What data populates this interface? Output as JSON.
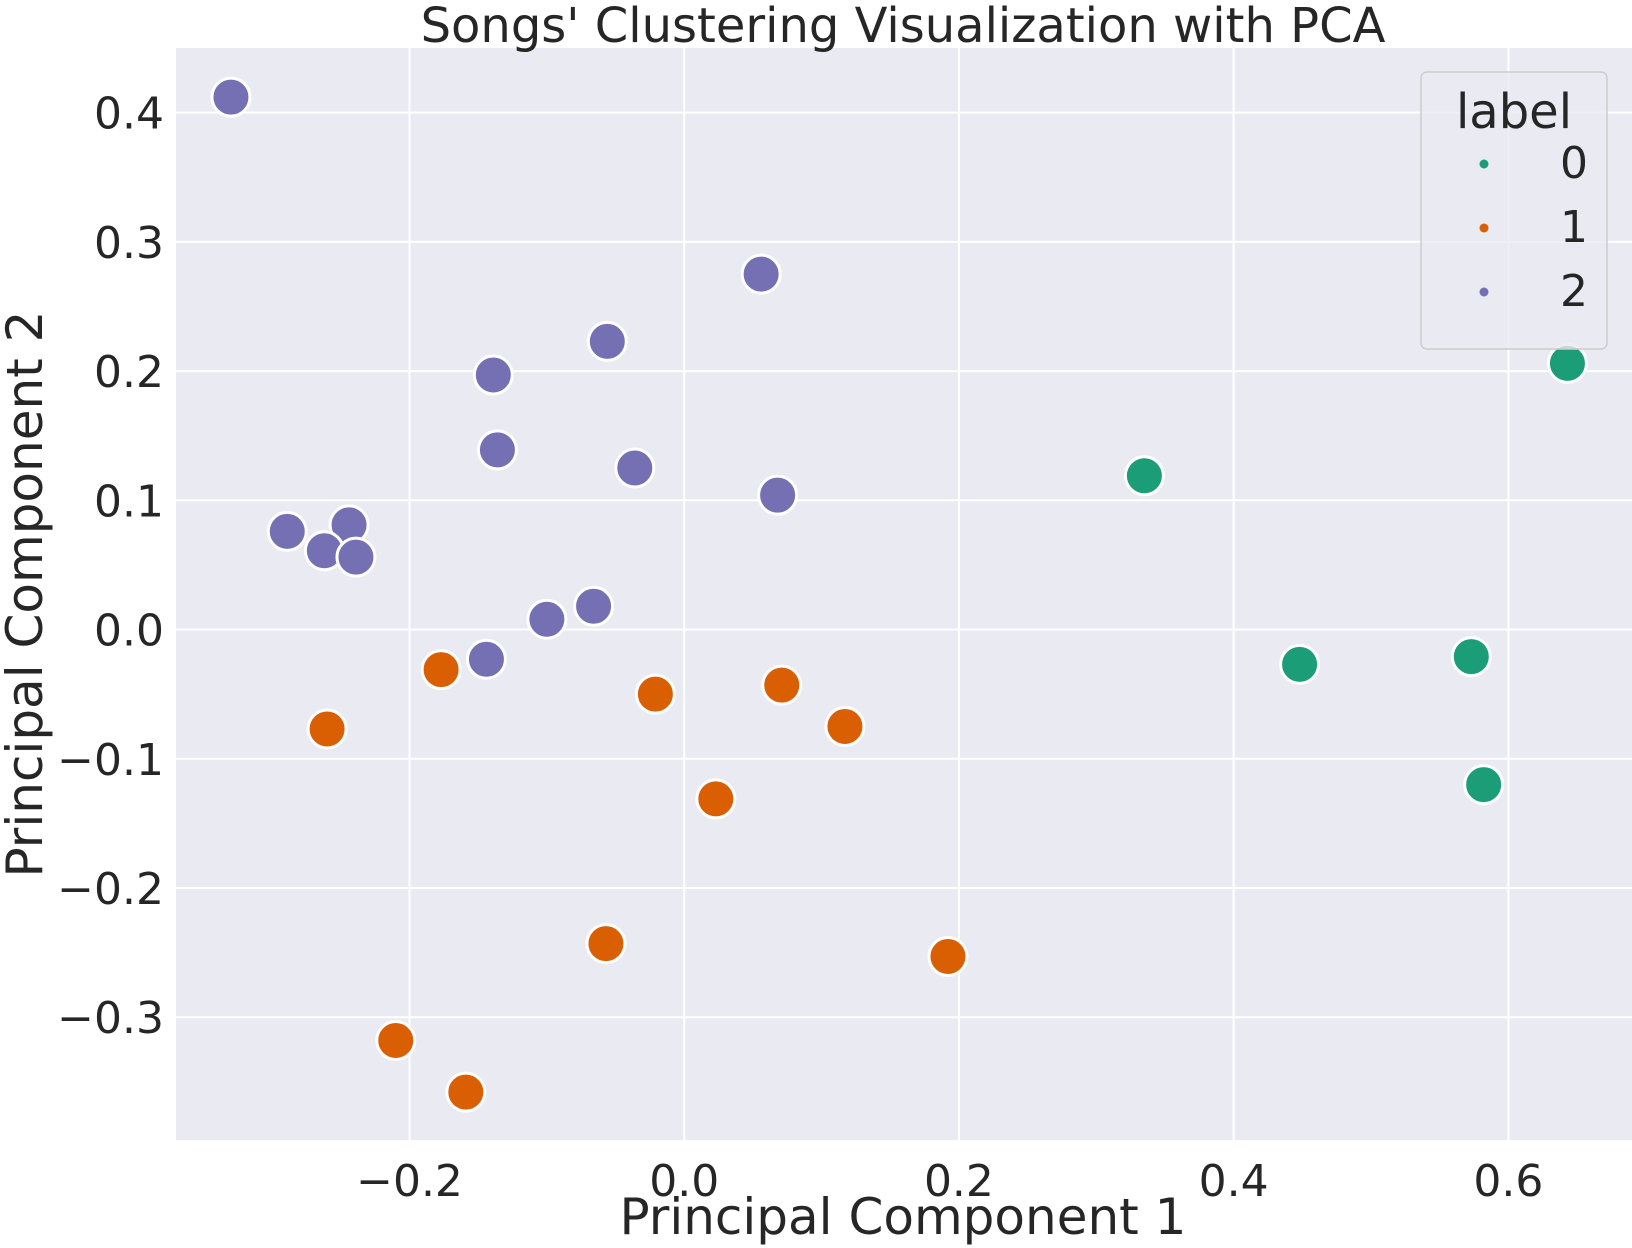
{
  "chart_data": {
    "type": "scatter",
    "title": "Songs' Clustering Visualization with PCA",
    "xlabel": "Principal Component 1",
    "ylabel": "Principal Component 2",
    "xlim": [
      -0.37,
      0.69
    ],
    "ylim": [
      -0.395,
      0.45
    ],
    "x_ticks": [
      -0.2,
      0.0,
      0.2,
      0.4,
      0.6
    ],
    "x_tick_labels": [
      "−0.2",
      "0.0",
      "0.2",
      "0.4",
      "0.6"
    ],
    "y_ticks": [
      -0.3,
      -0.2,
      -0.1,
      0.0,
      0.1,
      0.2,
      0.3,
      0.4
    ],
    "y_tick_labels": [
      "−0.3",
      "−0.2",
      "−0.1",
      "0.0",
      "0.1",
      "0.2",
      "0.3",
      "0.4"
    ],
    "grid": true,
    "background": "#eaeaf2",
    "legend": {
      "title": "label",
      "placement": "top-right",
      "entries": [
        {
          "label": "0",
          "color": "#1b9e77"
        },
        {
          "label": "1",
          "color": "#d95f02"
        },
        {
          "label": "2",
          "color": "#7570b3"
        }
      ]
    },
    "series": [
      {
        "name": "0",
        "color": "#1b9e77",
        "points": [
          {
            "x": 0.335,
            "y": 0.119
          },
          {
            "x": 0.448,
            "y": -0.027
          },
          {
            "x": 0.573,
            "y": -0.021
          },
          {
            "x": 0.582,
            "y": -0.12
          },
          {
            "x": 0.643,
            "y": 0.206
          }
        ]
      },
      {
        "name": "1",
        "color": "#d95f02",
        "points": [
          {
            "x": -0.26,
            "y": -0.077
          },
          {
            "x": -0.177,
            "y": -0.031
          },
          {
            "x": -0.021,
            "y": -0.05
          },
          {
            "x": 0.071,
            "y": -0.043
          },
          {
            "x": 0.117,
            "y": -0.075
          },
          {
            "x": 0.023,
            "y": -0.131
          },
          {
            "x": -0.057,
            "y": -0.243
          },
          {
            "x": 0.192,
            "y": -0.253
          },
          {
            "x": -0.21,
            "y": -0.318
          },
          {
            "x": -0.159,
            "y": -0.358
          }
        ]
      },
      {
        "name": "2",
        "color": "#7570b3",
        "points": [
          {
            "x": -0.33,
            "y": 0.412
          },
          {
            "x": 0.056,
            "y": 0.275
          },
          {
            "x": -0.056,
            "y": 0.223
          },
          {
            "x": -0.139,
            "y": 0.197
          },
          {
            "x": -0.136,
            "y": 0.139
          },
          {
            "x": -0.036,
            "y": 0.125
          },
          {
            "x": 0.068,
            "y": 0.104
          },
          {
            "x": -0.289,
            "y": 0.076
          },
          {
            "x": -0.244,
            "y": 0.081
          },
          {
            "x": -0.262,
            "y": 0.061
          },
          {
            "x": -0.239,
            "y": 0.056
          },
          {
            "x": -0.066,
            "y": 0.018
          },
          {
            "x": -0.1,
            "y": 0.008
          },
          {
            "x": -0.144,
            "y": -0.023
          }
        ]
      }
    ]
  }
}
